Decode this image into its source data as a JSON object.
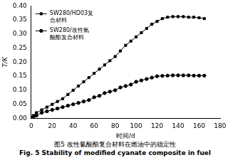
{
  "chart_data": {
    "type": "line",
    "title": "图5  改性氰酸酯复合材料在燃油中的稳定性",
    "subtitle": "Fig. 5  Stability of modified cyanate composite in fuel",
    "x_label": "时间/d",
    "y_label": "T/K",
    "x": [
      0,
      2,
      5,
      10,
      15,
      20,
      25,
      30,
      35,
      40,
      45,
      50,
      55,
      60,
      65,
      70,
      75,
      80,
      85,
      90,
      95,
      100,
      105,
      110,
      115,
      120,
      125,
      130,
      135,
      140,
      145,
      150,
      155,
      160,
      165
    ],
    "series": [
      {
        "name": "SW280/HD03复合材料",
        "color": "#000000",
        "marker": "square",
        "values": [
          0,
          0.01,
          0.02,
          0.03,
          0.04,
          0.05,
          0.06,
          0.07,
          0.085,
          0.1,
          0.115,
          0.13,
          0.145,
          0.16,
          0.175,
          0.19,
          0.205,
          0.22,
          0.24,
          0.26,
          0.275,
          0.29,
          0.305,
          0.32,
          0.335,
          0.345,
          0.355,
          0.36,
          0.362,
          0.362,
          0.362,
          0.36,
          0.36,
          0.358,
          0.355
        ]
      },
      {
        "name": "SW280/改性氰酸酯复合材料",
        "color": "#000000",
        "marker": "circle",
        "values": [
          0,
          0.005,
          0.01,
          0.02,
          0.025,
          0.03,
          0.035,
          0.04,
          0.045,
          0.05,
          0.055,
          0.06,
          0.065,
          0.075,
          0.08,
          0.09,
          0.095,
          0.1,
          0.11,
          0.115,
          0.12,
          0.13,
          0.135,
          0.14,
          0.145,
          0.15,
          0.151,
          0.152,
          0.153,
          0.153,
          0.153,
          0.153,
          0.152,
          0.152,
          0.152
        ]
      }
    ],
    "xlim": [
      0,
      180
    ],
    "xticks": [
      0,
      20,
      40,
      60,
      80,
      100,
      120,
      140,
      160,
      180
    ],
    "ylim": [
      0,
      0.4
    ],
    "yticks": [
      {
        "value": 0,
        "label": "0.00"
      },
      {
        "value": 0.05,
        "label": "0.05"
      },
      {
        "value": 0.1,
        "label": "0.10"
      },
      {
        "value": 0.15,
        "label": "0.15"
      },
      {
        "value": 0.2,
        "label": "0.20"
      },
      {
        "value": 0.25,
        "label": "0.25"
      },
      {
        "value": 0.3,
        "label": "0.30"
      },
      {
        "value": 0.35,
        "label": "0.35"
      },
      {
        "value": 0.4,
        "label": "0.40"
      }
    ],
    "grid": false,
    "legend": "upper left"
  }
}
